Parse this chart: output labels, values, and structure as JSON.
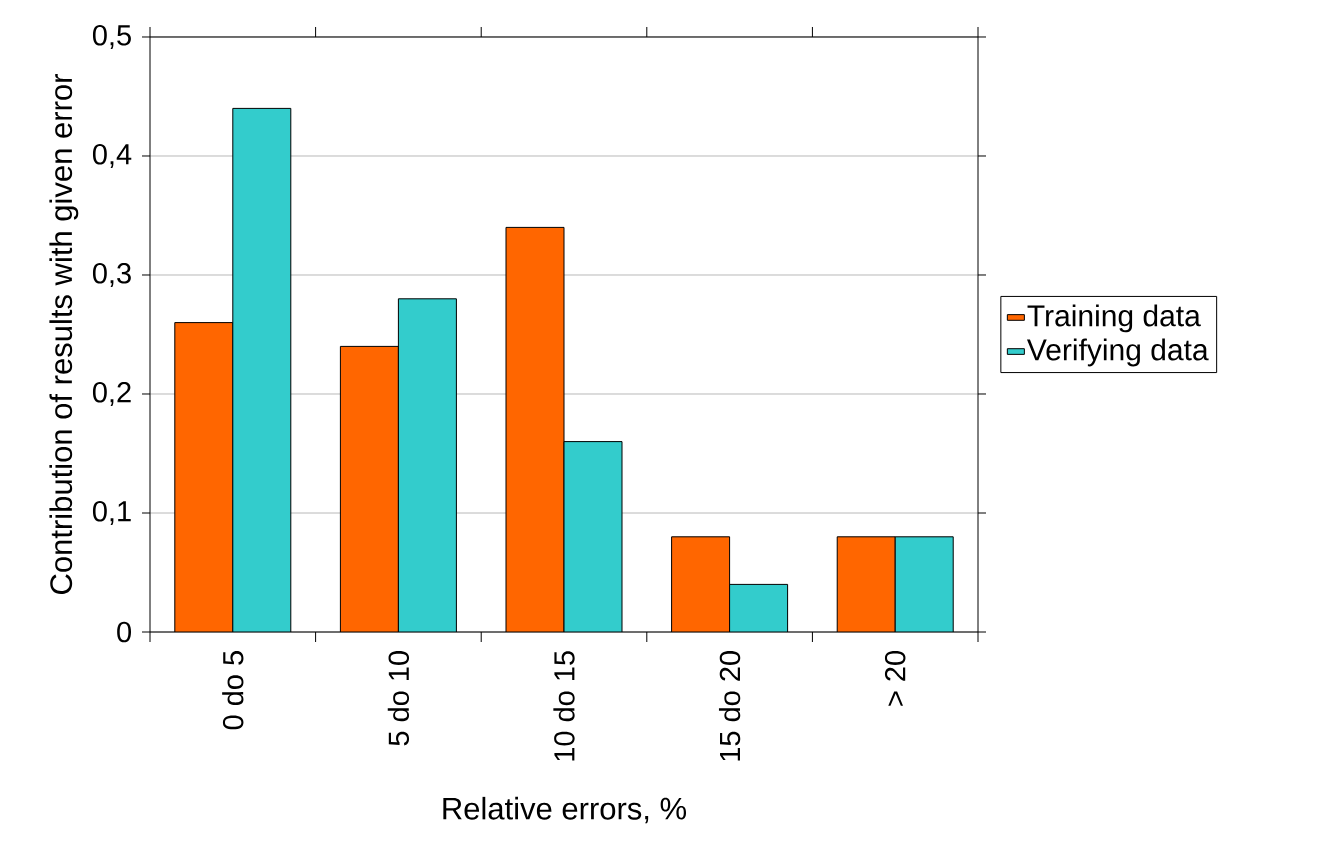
{
  "chart_data": {
    "type": "bar",
    "categories": [
      "0 do 5",
      "5 do 10",
      "10 do 15",
      "15 do 20",
      "> 20"
    ],
    "series": [
      {
        "name": "Training data",
        "color": "#ff6600",
        "values": [
          0.26,
          0.24,
          0.34,
          0.08,
          0.08
        ]
      },
      {
        "name": "Verifying data",
        "color": "#33cccc",
        "values": [
          0.44,
          0.28,
          0.16,
          0.04,
          0.08
        ]
      }
    ],
    "xlabel": "Relative errors, %",
    "ylabel": "Contribution of results with given error",
    "ylim": [
      0,
      0.5
    ],
    "yticks": [
      0,
      {
        "value": 0.1,
        "label": "0,1"
      },
      {
        "value": 0.2,
        "label": "0,2"
      },
      {
        "value": 0.3,
        "label": "0,3"
      },
      {
        "value": 0.4,
        "label": "0,4"
      },
      {
        "value": 0.5,
        "label": "0,5"
      }
    ],
    "grid": "y",
    "legend": "right"
  }
}
